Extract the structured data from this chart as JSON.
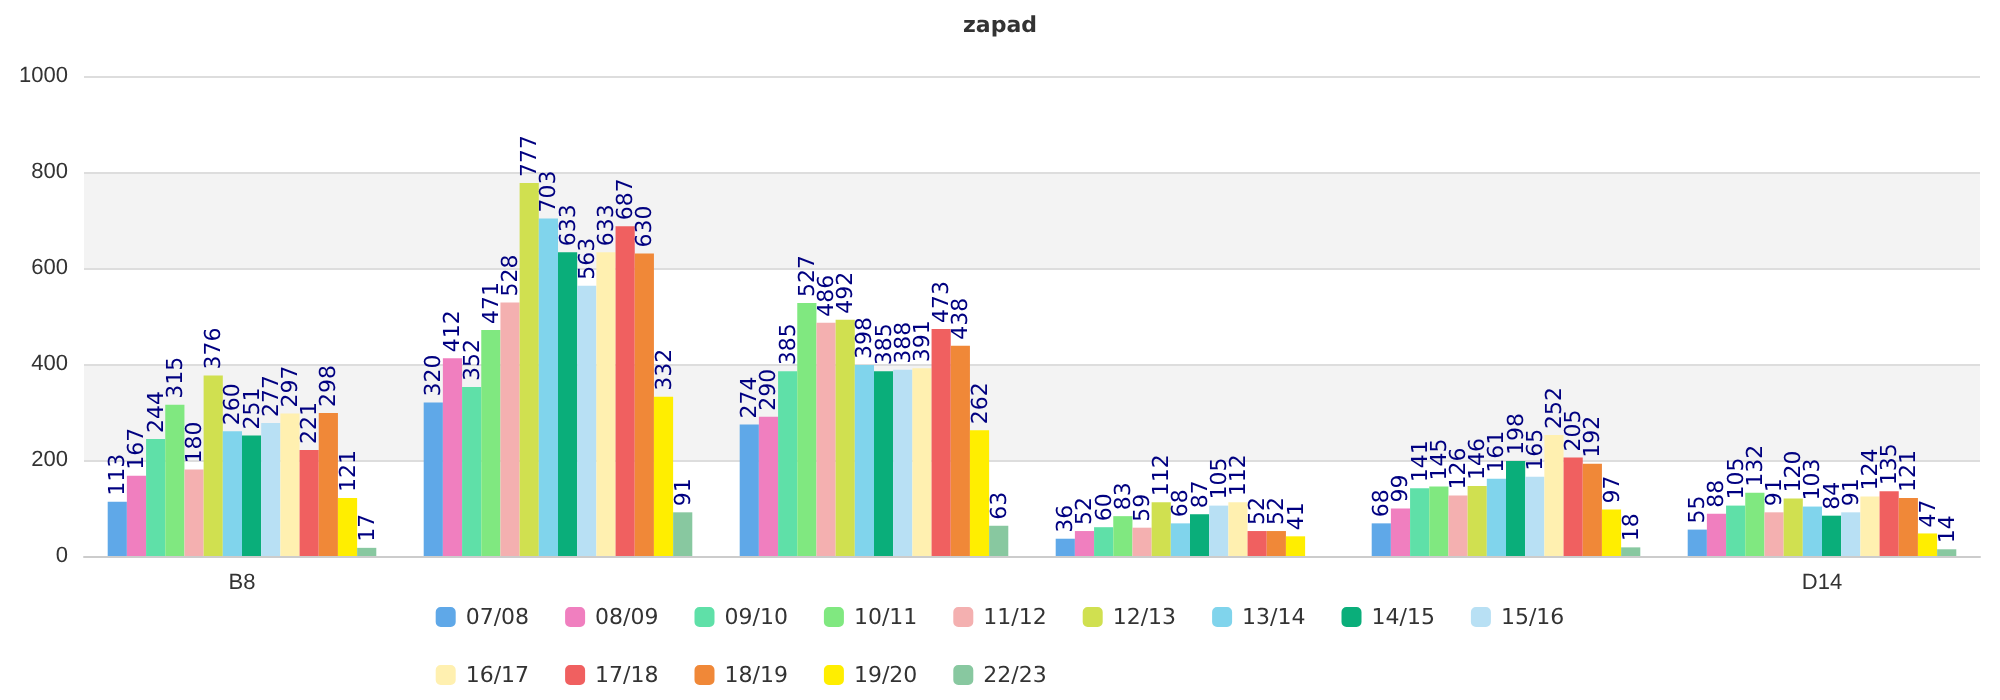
{
  "chart_data": {
    "type": "bar",
    "title": "zapad",
    "categories": [
      "B8",
      null,
      null,
      null,
      null,
      "D14"
    ],
    "series": [
      {
        "name": "07/08",
        "color": "#5fa8e8",
        "values": [
          113,
          320,
          274,
          36,
          68,
          55
        ]
      },
      {
        "name": "08/09",
        "color": "#f07fbf",
        "values": [
          167,
          412,
          290,
          52,
          99,
          88
        ]
      },
      {
        "name": "09/10",
        "color": "#5fe0a8",
        "values": [
          244,
          352,
          385,
          60,
          141,
          105
        ]
      },
      {
        "name": "10/11",
        "color": "#80e880",
        "values": [
          315,
          471,
          527,
          83,
          145,
          132
        ]
      },
      {
        "name": "11/12",
        "color": "#f4b0b0",
        "values": [
          180,
          528,
          486,
          59,
          126,
          91
        ]
      },
      {
        "name": "12/13",
        "color": "#d0e050",
        "values": [
          376,
          777,
          492,
          112,
          146,
          120
        ]
      },
      {
        "name": "13/14",
        "color": "#80d4ec",
        "values": [
          260,
          703,
          398,
          68,
          161,
          103
        ]
      },
      {
        "name": "14/15",
        "color": "#0aae7a",
        "values": [
          251,
          633,
          385,
          87,
          198,
          84
        ]
      },
      {
        "name": "15/16",
        "color": "#b8e0f4",
        "values": [
          277,
          563,
          388,
          105,
          165,
          91
        ]
      },
      {
        "name": "16/17",
        "color": "#fff0b0",
        "values": [
          297,
          633,
          391,
          112,
          252,
          124
        ]
      },
      {
        "name": "17/18",
        "color": "#f06060",
        "values": [
          221,
          687,
          473,
          52,
          205,
          135
        ]
      },
      {
        "name": "18/19",
        "color": "#f08838",
        "values": [
          298,
          630,
          438,
          52,
          192,
          121
        ]
      },
      {
        "name": "19/20",
        "color": "#ffee00",
        "values": [
          121,
          332,
          262,
          41,
          97,
          47
        ]
      },
      {
        "name": "22/23",
        "color": "#88c8a0",
        "values": [
          17,
          91,
          63,
          null,
          18,
          14
        ]
      }
    ],
    "ylim": [
      0,
      1000
    ],
    "yticks": [
      0,
      200,
      400,
      600,
      800,
      1000
    ],
    "grid": "y",
    "legend": "bottom",
    "data_labels": true
  }
}
